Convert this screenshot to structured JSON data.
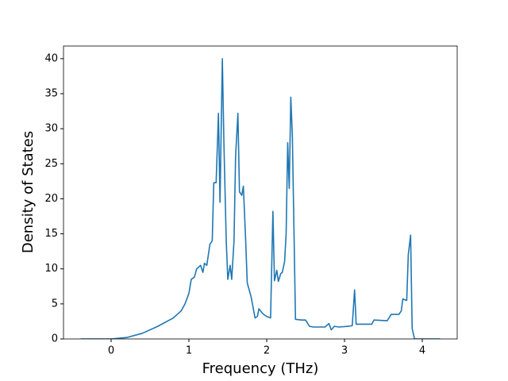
{
  "chart_data": {
    "type": "line",
    "xlabel": "Frequency (THz)",
    "ylabel": "Density of States",
    "xlim": [
      -0.612,
      4.449
    ],
    "ylim": [
      0,
      41.8
    ],
    "xticks": [
      0,
      1,
      2,
      3,
      4
    ],
    "yticks": [
      0,
      5,
      10,
      15,
      20,
      25,
      30,
      35,
      40
    ],
    "series": [
      {
        "color": "#1f77b4",
        "x": [
          -0.39,
          0.0,
          0.2,
          0.4,
          0.6,
          0.8,
          0.9,
          0.95,
          1.0,
          1.03,
          1.07,
          1.1,
          1.15,
          1.18,
          1.2,
          1.23,
          1.27,
          1.3,
          1.32,
          1.35,
          1.38,
          1.4,
          1.43,
          1.45,
          1.48,
          1.5,
          1.53,
          1.55,
          1.58,
          1.6,
          1.63,
          1.65,
          1.68,
          1.7,
          1.73,
          1.75,
          1.8,
          1.85,
          1.88,
          1.9,
          1.95,
          2.0,
          2.05,
          2.08,
          2.1,
          2.13,
          2.15,
          2.18,
          2.2,
          2.23,
          2.25,
          2.27,
          2.29,
          2.31,
          2.33,
          2.37,
          2.45,
          2.5,
          2.55,
          2.6,
          2.75,
          2.8,
          2.83,
          2.87,
          2.93,
          3.05,
          3.1,
          3.13,
          3.15,
          3.35,
          3.38,
          3.55,
          3.6,
          3.7,
          3.73,
          3.75,
          3.8,
          3.82,
          3.85,
          3.87,
          3.9,
          4.23
        ],
        "values": [
          0,
          0,
          0.2,
          0.8,
          1.8,
          3.0,
          4.0,
          5.0,
          6.5,
          8.5,
          8.8,
          10,
          10.5,
          9.5,
          10.8,
          10.5,
          13.5,
          14,
          22.3,
          22.3,
          32.2,
          19.5,
          40,
          28,
          14,
          8.5,
          10.5,
          8.5,
          14,
          26,
          32.2,
          21,
          20.5,
          21.8,
          14,
          8,
          6,
          3,
          3.2,
          4.3,
          3.6,
          3.2,
          3,
          18.2,
          8.3,
          9.8,
          8.2,
          9.3,
          9.5,
          11,
          15,
          28,
          21.5,
          34.5,
          29,
          2.8,
          2.7,
          2.7,
          1.8,
          1.7,
          1.7,
          2.2,
          1.3,
          1.8,
          1.7,
          1.8,
          1.9,
          7,
          2.1,
          2.1,
          2.7,
          2.6,
          3.5,
          3.5,
          4,
          5.7,
          5.5,
          12,
          14.8,
          1.5,
          0,
          0
        ]
      }
    ]
  }
}
